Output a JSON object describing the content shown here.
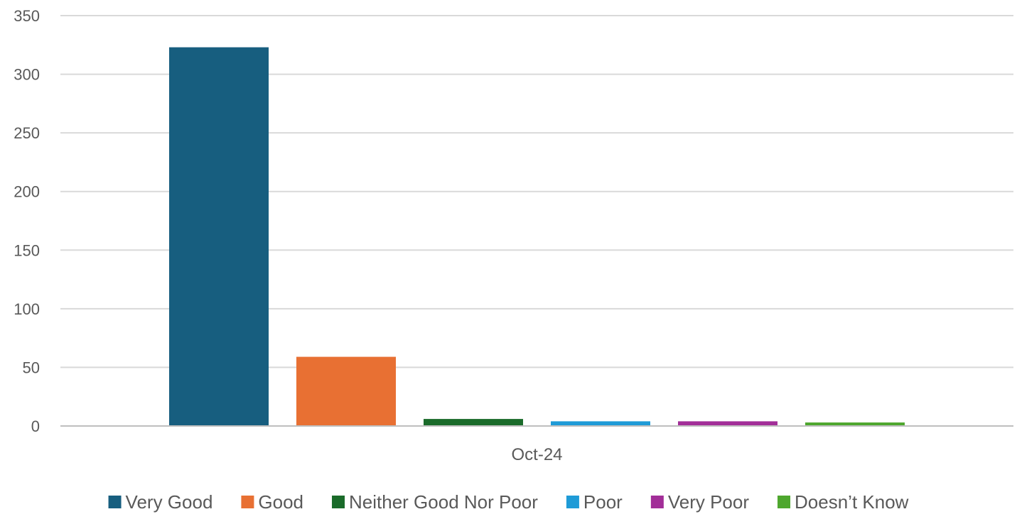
{
  "chart_data": {
    "type": "bar",
    "categories": [
      "Oct-24"
    ],
    "series": [
      {
        "name": "Very Good",
        "values": [
          323
        ],
        "color": "#175E7F"
      },
      {
        "name": "Good",
        "values": [
          59
        ],
        "color": "#E87033"
      },
      {
        "name": "Neither Good Nor Poor",
        "values": [
          6
        ],
        "color": "#1A6B2A"
      },
      {
        "name": "Poor",
        "values": [
          4
        ],
        "color": "#1F9BD7"
      },
      {
        "name": "Very Poor",
        "values": [
          4
        ],
        "color": "#A22E98"
      },
      {
        "name": "Doesn’t Know",
        "values": [
          3
        ],
        "color": "#4EA72E"
      }
    ],
    "title": "",
    "xlabel": "",
    "ylabel": "",
    "ylim": [
      0,
      350
    ],
    "yticks": [
      0,
      50,
      100,
      150,
      200,
      250,
      300,
      350
    ],
    "grid": true,
    "legend": "bottom"
  }
}
